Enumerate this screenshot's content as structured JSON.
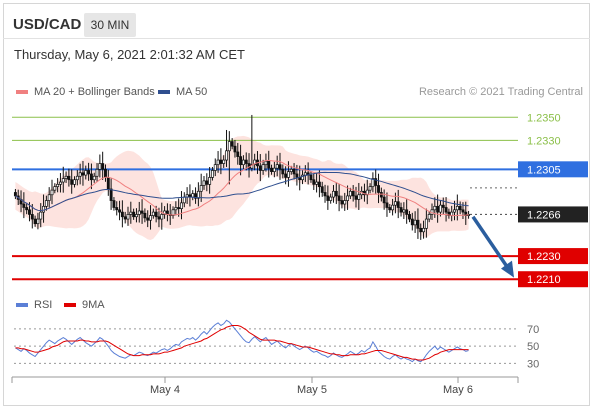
{
  "header": {
    "symbol": "USD/CAD",
    "timeframe": "30 MIN"
  },
  "datetime": "Thursday, May 6, 2021 2:01:32 AM CET",
  "copyright": "Research © 2021 Trading Central",
  "legend": {
    "ma20_bollinger": {
      "label": "MA 20 + Bollinger Bands",
      "color": "#f08080"
    },
    "ma50": {
      "label": "MA 50",
      "color": "#2f4f8f"
    },
    "rsi": {
      "label": "RSI",
      "color": "#5b7fd6"
    },
    "ma9": {
      "label": "9MA",
      "color": "#e00000"
    }
  },
  "chart_data": [
    {
      "type": "candlestick",
      "title": "",
      "x_ticks": [
        "May 4",
        "May 5",
        "May 6"
      ],
      "ylim": [
        1.2205,
        1.2358
      ],
      "levels": [
        {
          "value": 1.235,
          "label": "1.2350",
          "color": "#8cc04a",
          "kind": "resistance"
        },
        {
          "value": 1.233,
          "label": "1.2330",
          "color": "#8cc04a",
          "kind": "resistance"
        },
        {
          "value": 1.2305,
          "label": "1.2305",
          "color": "#2f6fe0",
          "kind": "pivot"
        },
        {
          "value": 1.2266,
          "label": "1.2266",
          "color": "#222222",
          "kind": "last-price"
        },
        {
          "value": 1.223,
          "label": "1.2230",
          "color": "#e00000",
          "kind": "support"
        },
        {
          "value": 1.221,
          "label": "1.2210",
          "color": "#e00000",
          "kind": "support"
        }
      ],
      "close": [
        1.2282,
        1.2279,
        1.2275,
        1.2272,
        1.227,
        1.2266,
        1.2262,
        1.2258,
        1.2262,
        1.2268,
        1.2273,
        1.2278,
        1.2283,
        1.2287,
        1.229,
        1.2292,
        1.2294,
        1.2297,
        1.2299,
        1.2296,
        1.2292,
        1.2296,
        1.2299,
        1.2302,
        1.23,
        1.2304,
        1.2301,
        1.2296,
        1.2299,
        1.2305,
        1.231,
        1.2305,
        1.2298,
        1.2288,
        1.2278,
        1.2272,
        1.227,
        1.2268,
        1.2264,
        1.2262,
        1.2266,
        1.2268,
        1.2264,
        1.2266,
        1.2269,
        1.2267,
        1.2263,
        1.2261,
        1.2265,
        1.2268,
        1.2264,
        1.2262,
        1.2266,
        1.2269,
        1.2266,
        1.2265,
        1.227,
        1.2272,
        1.2271,
        1.2276,
        1.2281,
        1.2283,
        1.2281,
        1.2284,
        1.228,
        1.2286,
        1.2291,
        1.2295,
        1.2292,
        1.2298,
        1.2304,
        1.2309,
        1.2313,
        1.231,
        1.2313,
        1.2321,
        1.2329,
        1.2325,
        1.232,
        1.2316,
        1.2309,
        1.2313,
        1.231,
        1.2306,
        1.2309,
        1.2313,
        1.2308,
        1.2304,
        1.2309,
        1.2312,
        1.2306,
        1.2303,
        1.2306,
        1.2309,
        1.2305,
        1.2301,
        1.2298,
        1.2303,
        1.2305,
        1.2301,
        1.2298,
        1.2296,
        1.23,
        1.2302,
        1.23,
        1.2296,
        1.2292,
        1.2294,
        1.229,
        1.2285,
        1.2282,
        1.2278,
        1.2281,
        1.2286,
        1.2282,
        1.2278,
        1.2275,
        1.2278,
        1.2282,
        1.2286,
        1.2282,
        1.2279,
        1.2283,
        1.2286,
        1.2283,
        1.2287,
        1.229,
        1.2297,
        1.2291,
        1.2285,
        1.2281,
        1.2276,
        1.2272,
        1.227,
        1.2274,
        1.2277,
        1.2272,
        1.2268,
        1.227,
        1.2266,
        1.2262,
        1.2257,
        1.2261,
        1.2254,
        1.2251,
        1.2254,
        1.2262,
        1.2266,
        1.227,
        1.2273,
        1.2268,
        1.2274,
        1.2272,
        1.2268,
        1.2265,
        1.2268,
        1.227,
        1.2273,
        1.227,
        1.2268,
        1.2265,
        1.2266
      ]
    },
    {
      "type": "line",
      "title": "",
      "series_names": [
        "RSI",
        "9MA"
      ],
      "ylim": [
        20,
        85
      ],
      "y_ticks": [
        70,
        50,
        30
      ],
      "rsi": [
        48,
        46,
        44,
        47,
        45,
        42,
        40,
        38,
        42,
        46,
        50,
        54,
        57,
        55,
        53,
        56,
        58,
        60,
        58,
        55,
        52,
        55,
        58,
        60,
        57,
        54,
        52,
        50,
        53,
        56,
        60,
        58,
        54,
        50,
        45,
        42,
        40,
        38,
        37,
        36,
        38,
        40,
        39,
        41,
        43,
        42,
        40,
        39,
        41,
        43,
        42,
        44,
        46,
        47,
        45,
        47,
        50,
        52,
        51,
        55,
        57,
        59,
        58,
        60,
        57,
        60,
        64,
        67,
        64,
        68,
        72,
        75,
        77,
        74,
        76,
        80,
        78,
        74,
        70,
        66,
        62,
        58,
        55,
        54,
        58,
        61,
        58,
        55,
        58,
        60,
        56,
        52,
        54,
        56,
        53,
        50,
        48,
        51,
        53,
        50,
        48,
        46,
        48,
        50,
        48,
        45,
        43,
        44,
        42,
        40,
        39,
        37,
        39,
        42,
        40,
        38,
        37,
        39,
        41,
        44,
        42,
        40,
        42,
        45,
        43,
        46,
        48,
        55,
        50,
        44,
        41,
        38,
        36,
        35,
        38,
        40,
        37,
        35,
        37,
        35,
        34,
        32,
        35,
        33,
        32,
        35,
        40,
        44,
        47,
        50,
        46,
        49,
        47,
        45,
        43,
        45,
        47,
        49,
        47,
        46,
        44,
        45
      ],
      "ma9": [
        48,
        48,
        47,
        47,
        46,
        45,
        44,
        43,
        43,
        44,
        45,
        46,
        47,
        49,
        50,
        51,
        53,
        55,
        56,
        56,
        56,
        56,
        56,
        57,
        57,
        56,
        56,
        55,
        55,
        55,
        56,
        56,
        56,
        55,
        53,
        51,
        49,
        47,
        45,
        43,
        41,
        40,
        39,
        39,
        39,
        40,
        40,
        40,
        40,
        41,
        41,
        41,
        42,
        43,
        43,
        44,
        45,
        46,
        47,
        48,
        50,
        51,
        52,
        53,
        54,
        55,
        56,
        58,
        59,
        61,
        63,
        65,
        67,
        69,
        70,
        72,
        73,
        74,
        74,
        74,
        73,
        71,
        69,
        66,
        64,
        62,
        60,
        58,
        57,
        57,
        57,
        57,
        57,
        56,
        56,
        55,
        54,
        53,
        53,
        52,
        51,
        50,
        49,
        49,
        49,
        48,
        47,
        46,
        45,
        44,
        43,
        42,
        41,
        41,
        40,
        40,
        39,
        39,
        39,
        40,
        40,
        40,
        40,
        41,
        41,
        42,
        43,
        44,
        45,
        45,
        45,
        44,
        43,
        42,
        41,
        40,
        39,
        38,
        37,
        37,
        36,
        35,
        35,
        34,
        34,
        34,
        35,
        36,
        38,
        40,
        41,
        43,
        44,
        45,
        46,
        46,
        46,
        46,
        46,
        46,
        46,
        46
      ]
    }
  ]
}
